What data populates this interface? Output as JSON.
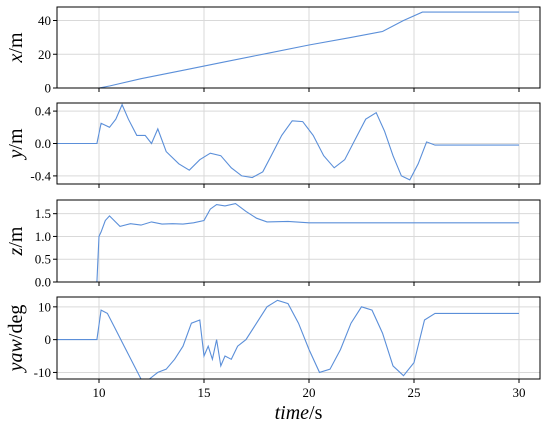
{
  "figure": {
    "xlabel_main": "time",
    "xlabel_unit": "/s"
  },
  "chart_data": [
    {
      "type": "line",
      "ylabel": "x/m",
      "xlim": [
        8,
        31
      ],
      "ylim": [
        0,
        48
      ],
      "xticks": [
        10,
        15,
        20,
        25,
        30
      ],
      "yticks": [
        0,
        20,
        40
      ],
      "ytick_labels": [
        "0",
        "20",
        "40"
      ],
      "grid": true,
      "series": [
        {
          "color": "#5b8fd9",
          "x": [
            10.0,
            10.5,
            12,
            14,
            16,
            18,
            20,
            22,
            23.5,
            24.5,
            25.4,
            27,
            30
          ],
          "y": [
            0,
            1.2,
            5.5,
            10.5,
            15.5,
            20.5,
            25.5,
            30,
            33.5,
            40,
            45,
            45,
            45
          ]
        }
      ]
    },
    {
      "type": "line",
      "ylabel": "y/m",
      "xlim": [
        8,
        31
      ],
      "ylim": [
        -0.5,
        0.5
      ],
      "xticks": [
        10,
        15,
        20,
        25,
        30
      ],
      "yticks": [
        -0.4,
        0.0,
        0.4
      ],
      "ytick_labels": [
        "-0.4",
        "0.0",
        "0.4"
      ],
      "grid": true,
      "series": [
        {
          "color": "#5b8fd9",
          "x": [
            8,
            9.9,
            10.1,
            10.5,
            10.8,
            11.1,
            11.4,
            11.8,
            12.2,
            12.5,
            12.8,
            13.2,
            13.8,
            14.3,
            14.8,
            15.3,
            15.8,
            16.3,
            16.8,
            17.3,
            17.8,
            18.2,
            18.7,
            19.2,
            19.7,
            20.2,
            20.7,
            21.2,
            21.7,
            22.2,
            22.7,
            23.2,
            23.6,
            24.0,
            24.4,
            24.8,
            25.2,
            25.6,
            26.0,
            27,
            30
          ],
          "y": [
            0,
            0,
            0.25,
            0.2,
            0.3,
            0.48,
            0.3,
            0.1,
            0.1,
            0.0,
            0.18,
            -0.1,
            -0.25,
            -0.33,
            -0.2,
            -0.12,
            -0.15,
            -0.3,
            -0.4,
            -0.42,
            -0.35,
            -0.15,
            0.1,
            0.28,
            0.27,
            0.1,
            -0.15,
            -0.3,
            -0.2,
            0.05,
            0.3,
            0.38,
            0.15,
            -0.15,
            -0.4,
            -0.45,
            -0.25,
            0.02,
            -0.02,
            -0.02,
            -0.02
          ]
        }
      ]
    },
    {
      "type": "line",
      "ylabel": "z/m",
      "xlim": [
        8,
        31
      ],
      "ylim": [
        0,
        1.8
      ],
      "xticks": [
        10,
        15,
        20,
        25,
        30
      ],
      "yticks": [
        0.0,
        0.5,
        1.0,
        1.5
      ],
      "ytick_labels": [
        "0.0",
        "0.5",
        "1.0",
        "1.5"
      ],
      "grid": true,
      "series": [
        {
          "color": "#5b8fd9",
          "x": [
            9.9,
            10.0,
            10.1,
            10.3,
            10.5,
            11.0,
            11.5,
            12.0,
            12.5,
            13.0,
            13.5,
            14.0,
            14.5,
            15.0,
            15.3,
            15.6,
            16.0,
            16.5,
            17.0,
            17.5,
            18.0,
            19.0,
            20.0,
            22.0,
            24.0,
            26.0,
            28.0,
            30.0
          ],
          "y": [
            0.0,
            1.0,
            1.1,
            1.35,
            1.45,
            1.22,
            1.28,
            1.25,
            1.32,
            1.27,
            1.28,
            1.27,
            1.3,
            1.35,
            1.6,
            1.7,
            1.67,
            1.72,
            1.55,
            1.4,
            1.32,
            1.33,
            1.3,
            1.3,
            1.3,
            1.3,
            1.3,
            1.3
          ]
        }
      ]
    },
    {
      "type": "line",
      "ylabel": "yaw/deg",
      "xlim": [
        8,
        31
      ],
      "ylim": [
        -12,
        13
      ],
      "xticks": [
        10,
        15,
        20,
        25,
        30
      ],
      "yticks": [
        -10,
        0,
        10
      ],
      "ytick_labels": [
        "-10",
        "0",
        "10"
      ],
      "grid": true,
      "series": [
        {
          "color": "#5b8fd9",
          "x": [
            8,
            9.9,
            10.1,
            10.4,
            10.8,
            11.2,
            11.6,
            12.0,
            12.4,
            12.8,
            13.2,
            13.6,
            14.0,
            14.4,
            14.8,
            15.0,
            15.2,
            15.4,
            15.6,
            15.8,
            16.0,
            16.3,
            16.6,
            17.0,
            17.5,
            18.0,
            18.5,
            19.0,
            19.5,
            20.0,
            20.5,
            21.0,
            21.5,
            22.0,
            22.5,
            23.0,
            23.5,
            24.0,
            24.5,
            25.0,
            25.5,
            26.0,
            27,
            30
          ],
          "y": [
            0,
            0,
            9,
            8,
            3,
            -2,
            -7,
            -12,
            -12,
            -10,
            -9,
            -6,
            -2,
            5,
            6,
            -5,
            -2,
            -6,
            0,
            -8,
            -5,
            -6,
            -2,
            0,
            5,
            10,
            12,
            11,
            5,
            -3,
            -10,
            -9,
            -3,
            5,
            10,
            9,
            2,
            -8,
            -11,
            -7,
            6,
            8,
            8,
            8
          ]
        }
      ]
    }
  ]
}
